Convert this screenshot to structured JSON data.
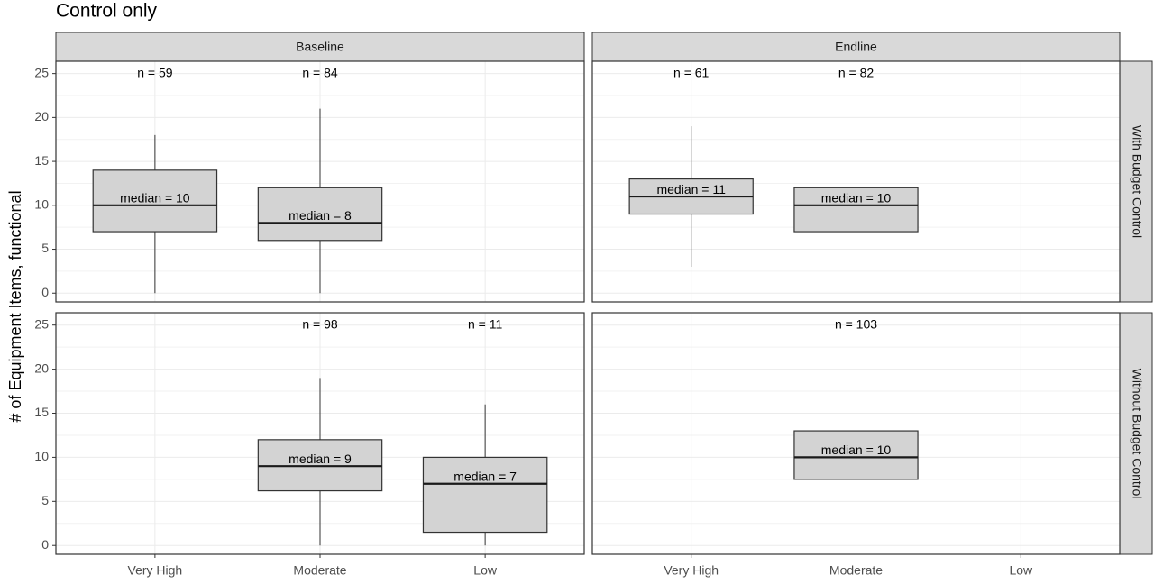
{
  "title": "Control only",
  "y_label": "# of Equipment Items, functional",
  "facet_columns": [
    "Baseline",
    "Endline"
  ],
  "facet_rows": [
    "With Budget Control",
    "Without Budget Control"
  ],
  "categories": [
    "Very High",
    "Moderate",
    "Low"
  ],
  "chart_data": [
    {
      "type": "box",
      "ylim": [
        -1,
        26.4
      ],
      "yticks": [
        0,
        5,
        10,
        15,
        20,
        25
      ],
      "grid": true,
      "color": "#d3d3d3",
      "boxes": [
        {
          "min": 0,
          "q1": 7,
          "median": 10,
          "q3": 14,
          "max": 18,
          "n_label": "n = 59",
          "median_label": "median = 10"
        },
        {
          "min": 0,
          "q1": 6,
          "median": 8,
          "q3": 12,
          "max": 21,
          "n_label": "n = 84",
          "median_label": "median = 8"
        },
        null
      ]
    },
    {
      "type": "box",
      "ylim": [
        -1,
        26.4
      ],
      "yticks": [
        0,
        5,
        10,
        15,
        20,
        25
      ],
      "grid": true,
      "color": "#d3d3d3",
      "boxes": [
        {
          "min": 3,
          "q1": 9,
          "median": 11,
          "q3": 13,
          "max": 19,
          "n_label": "n = 61",
          "median_label": "median = 11"
        },
        {
          "min": 0,
          "q1": 7,
          "median": 10,
          "q3": 12,
          "max": 16,
          "n_label": "n = 82",
          "median_label": "median = 10"
        },
        null
      ]
    },
    {
      "type": "box",
      "ylim": [
        -1,
        26.4
      ],
      "yticks": [
        0,
        5,
        10,
        15,
        20,
        25
      ],
      "grid": true,
      "color": "#d3d3d3",
      "boxes": [
        null,
        {
          "min": 0,
          "q1": 6.2,
          "median": 9,
          "q3": 12,
          "max": 19,
          "n_label": "n = 98",
          "median_label": "median = 9"
        },
        {
          "min": 0,
          "q1": 1.5,
          "median": 7,
          "q3": 10,
          "max": 16,
          "n_label": "n = 11",
          "median_label": "median = 7"
        }
      ]
    },
    {
      "type": "box",
      "ylim": [
        -1,
        26.4
      ],
      "yticks": [
        0,
        5,
        10,
        15,
        20,
        25
      ],
      "grid": true,
      "color": "#d3d3d3",
      "boxes": [
        null,
        {
          "min": 1,
          "q1": 7.5,
          "median": 10,
          "q3": 13,
          "max": 20,
          "n_label": "n = 103",
          "median_label": "median = 10"
        },
        null
      ]
    }
  ]
}
